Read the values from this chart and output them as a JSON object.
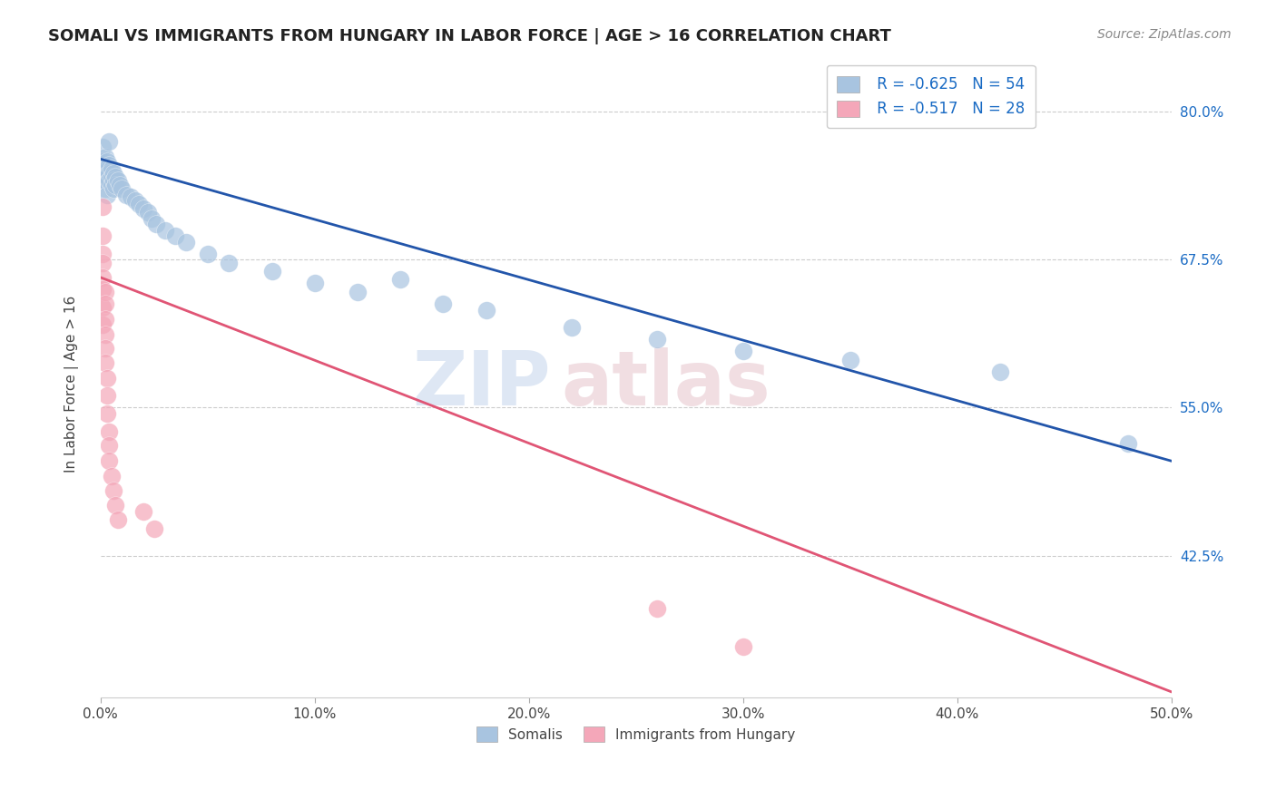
{
  "title": "SOMALI VS IMMIGRANTS FROM HUNGARY IN LABOR FORCE | AGE > 16 CORRELATION CHART",
  "source": "Source: ZipAtlas.com",
  "ylabel": "In Labor Force | Age > 16",
  "xlim": [
    0,
    0.5
  ],
  "ylim": [
    0.305,
    0.835
  ],
  "xtick_vals": [
    0.0,
    0.1,
    0.2,
    0.3,
    0.4,
    0.5
  ],
  "ytick_vals": [
    0.8,
    0.675,
    0.55,
    0.425
  ],
  "grid_color": "#cccccc",
  "background_color": "#ffffff",
  "somali_color": "#a8c4e0",
  "hungary_color": "#f4a7b9",
  "somali_line_color": "#2255aa",
  "hungary_line_color": "#e05575",
  "legend_r_somali": "R = -0.625",
  "legend_n_somali": "N = 54",
  "legend_r_hungary": "R = -0.517",
  "legend_n_hungary": "N = 28",
  "somali_points": [
    [
      0.001,
      0.77
    ],
    [
      0.001,
      0.758
    ],
    [
      0.001,
      0.748
    ],
    [
      0.001,
      0.742
    ],
    [
      0.002,
      0.762
    ],
    [
      0.002,
      0.75
    ],
    [
      0.002,
      0.745
    ],
    [
      0.002,
      0.74
    ],
    [
      0.002,
      0.735
    ],
    [
      0.003,
      0.758
    ],
    [
      0.003,
      0.75
    ],
    [
      0.003,
      0.745
    ],
    [
      0.003,
      0.74
    ],
    [
      0.003,
      0.73
    ],
    [
      0.004,
      0.775
    ],
    [
      0.004,
      0.755
    ],
    [
      0.004,
      0.748
    ],
    [
      0.004,
      0.742
    ],
    [
      0.005,
      0.752
    ],
    [
      0.005,
      0.745
    ],
    [
      0.005,
      0.738
    ],
    [
      0.006,
      0.748
    ],
    [
      0.006,
      0.742
    ],
    [
      0.006,
      0.735
    ],
    [
      0.007,
      0.745
    ],
    [
      0.007,
      0.738
    ],
    [
      0.008,
      0.742
    ],
    [
      0.009,
      0.738
    ],
    [
      0.01,
      0.735
    ],
    [
      0.012,
      0.73
    ],
    [
      0.014,
      0.728
    ],
    [
      0.016,
      0.725
    ],
    [
      0.018,
      0.722
    ],
    [
      0.02,
      0.718
    ],
    [
      0.022,
      0.715
    ],
    [
      0.024,
      0.71
    ],
    [
      0.026,
      0.705
    ],
    [
      0.03,
      0.7
    ],
    [
      0.035,
      0.695
    ],
    [
      0.04,
      0.69
    ],
    [
      0.05,
      0.68
    ],
    [
      0.06,
      0.672
    ],
    [
      0.08,
      0.665
    ],
    [
      0.1,
      0.655
    ],
    [
      0.12,
      0.648
    ],
    [
      0.14,
      0.658
    ],
    [
      0.16,
      0.638
    ],
    [
      0.18,
      0.632
    ],
    [
      0.22,
      0.618
    ],
    [
      0.26,
      0.608
    ],
    [
      0.3,
      0.598
    ],
    [
      0.35,
      0.59
    ],
    [
      0.42,
      0.58
    ],
    [
      0.48,
      0.52
    ]
  ],
  "hungary_points": [
    [
      0.001,
      0.72
    ],
    [
      0.001,
      0.695
    ],
    [
      0.001,
      0.68
    ],
    [
      0.001,
      0.672
    ],
    [
      0.001,
      0.66
    ],
    [
      0.001,
      0.65
    ],
    [
      0.001,
      0.635
    ],
    [
      0.001,
      0.62
    ],
    [
      0.002,
      0.648
    ],
    [
      0.002,
      0.638
    ],
    [
      0.002,
      0.625
    ],
    [
      0.002,
      0.612
    ],
    [
      0.002,
      0.6
    ],
    [
      0.002,
      0.588
    ],
    [
      0.003,
      0.575
    ],
    [
      0.003,
      0.56
    ],
    [
      0.003,
      0.545
    ],
    [
      0.004,
      0.53
    ],
    [
      0.004,
      0.518
    ],
    [
      0.004,
      0.505
    ],
    [
      0.005,
      0.492
    ],
    [
      0.006,
      0.48
    ],
    [
      0.007,
      0.468
    ],
    [
      0.008,
      0.455
    ],
    [
      0.02,
      0.462
    ],
    [
      0.025,
      0.448
    ],
    [
      0.26,
      0.38
    ],
    [
      0.3,
      0.348
    ]
  ],
  "somali_trend_x": [
    0.0,
    0.5
  ],
  "somali_trend_y": [
    0.76,
    0.505
  ],
  "hungary_trend_x": [
    0.0,
    0.5
  ],
  "hungary_trend_y": [
    0.66,
    0.31
  ]
}
